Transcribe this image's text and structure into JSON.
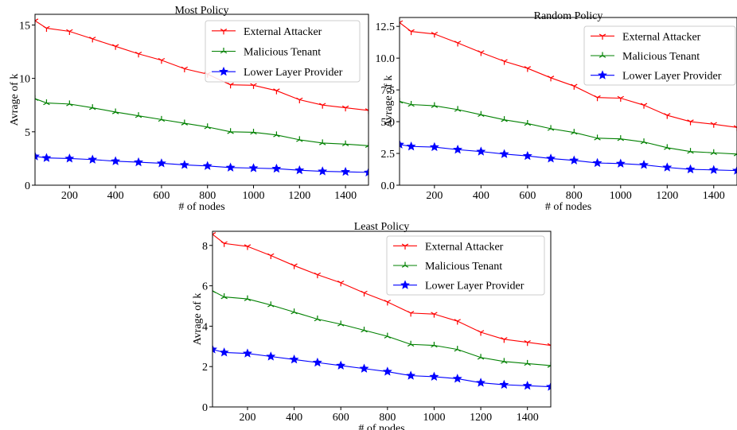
{
  "colors": {
    "external": "#ff0000",
    "malicious": "#008000",
    "lower": "#0000ff"
  },
  "chart_data": [
    {
      "type": "line",
      "title": "Most Policy",
      "xlabel": "# of nodes",
      "ylabel": "Avrage of k",
      "xlim": [
        50,
        1500
      ],
      "ylim": [
        0,
        16
      ],
      "xticks": [
        200,
        400,
        600,
        800,
        1000,
        1200,
        1400
      ],
      "yticks": [
        0,
        5,
        10,
        15
      ],
      "ytick_labels": [
        "0",
        "5",
        "10",
        "15"
      ],
      "legend_position": "top-right",
      "grid": false,
      "x": [
        50,
        100,
        200,
        300,
        400,
        500,
        600,
        700,
        800,
        900,
        1000,
        1100,
        1200,
        1300,
        1400,
        1500
      ],
      "series": [
        {
          "name": "External Attacker",
          "marker": "tri-down",
          "color": "#ff0000",
          "values": [
            15.4,
            14.7,
            14.4,
            13.7,
            13.0,
            12.3,
            11.7,
            10.9,
            10.4,
            9.4,
            9.35,
            8.85,
            8.0,
            7.5,
            7.25,
            7.0
          ]
        },
        {
          "name": "Malicious Tenant",
          "marker": "tri-up",
          "color": "#008000",
          "values": [
            8.1,
            7.7,
            7.6,
            7.25,
            6.85,
            6.5,
            6.15,
            5.8,
            5.45,
            5.0,
            4.95,
            4.7,
            4.25,
            3.95,
            3.85,
            3.7
          ]
        },
        {
          "name": "Lower Layer Provider",
          "marker": "star",
          "color": "#0000ff",
          "values": [
            2.7,
            2.55,
            2.5,
            2.4,
            2.25,
            2.15,
            2.05,
            1.9,
            1.8,
            1.65,
            1.6,
            1.55,
            1.4,
            1.3,
            1.25,
            1.2
          ]
        }
      ]
    },
    {
      "type": "line",
      "title": "Random Policy",
      "xlabel": "# of nodes",
      "ylabel": "Avrage of k",
      "xlim": [
        50,
        1500
      ],
      "ylim": [
        0,
        13.2
      ],
      "xticks": [
        200,
        400,
        600,
        800,
        1000,
        1200,
        1400
      ],
      "yticks": [
        0,
        2.5,
        5,
        7.5,
        10,
        12.5
      ],
      "ytick_labels": [
        "0.0",
        "2.5",
        "5.0",
        "7.5",
        "10.0",
        "12.5"
      ],
      "legend_position": "top-right",
      "grid": false,
      "x": [
        50,
        100,
        200,
        300,
        400,
        500,
        600,
        700,
        800,
        900,
        1000,
        1100,
        1200,
        1300,
        1400,
        1500
      ],
      "series": [
        {
          "name": "External Attacker",
          "marker": "tri-down",
          "color": "#ff0000",
          "values": [
            12.8,
            12.1,
            11.9,
            11.2,
            10.45,
            9.75,
            9.2,
            8.45,
            7.8,
            6.9,
            6.85,
            6.3,
            5.5,
            5.0,
            4.8,
            4.55
          ]
        },
        {
          "name": "Malicious Tenant",
          "marker": "tri-up",
          "color": "#008000",
          "values": [
            6.6,
            6.35,
            6.25,
            5.95,
            5.55,
            5.15,
            4.85,
            4.45,
            4.15,
            3.7,
            3.65,
            3.4,
            2.95,
            2.65,
            2.55,
            2.45
          ]
        },
        {
          "name": "Lower Layer Provider",
          "marker": "star",
          "color": "#0000ff",
          "values": [
            3.2,
            3.05,
            3.0,
            2.8,
            2.65,
            2.45,
            2.3,
            2.1,
            1.95,
            1.75,
            1.7,
            1.6,
            1.4,
            1.25,
            1.2,
            1.15
          ]
        }
      ]
    },
    {
      "type": "line",
      "title": "Least Policy",
      "xlabel": "# of nodes",
      "ylabel": "Avrage of k",
      "xlim": [
        50,
        1500
      ],
      "ylim": [
        0,
        8.7
      ],
      "xticks": [
        200,
        400,
        600,
        800,
        1000,
        1200,
        1400
      ],
      "yticks": [
        0,
        2,
        4,
        6,
        8
      ],
      "ytick_labels": [
        "0",
        "2",
        "4",
        "6",
        "8"
      ],
      "legend_position": "top-right",
      "grid": false,
      "x": [
        50,
        100,
        200,
        300,
        400,
        500,
        600,
        700,
        800,
        900,
        1000,
        1100,
        1200,
        1300,
        1400,
        1500
      ],
      "series": [
        {
          "name": "External Attacker",
          "marker": "tri-down",
          "color": "#ff0000",
          "values": [
            8.55,
            8.1,
            7.95,
            7.5,
            7.0,
            6.55,
            6.15,
            5.65,
            5.2,
            4.65,
            4.6,
            4.25,
            3.7,
            3.35,
            3.2,
            3.05
          ]
        },
        {
          "name": "Malicious Tenant",
          "marker": "tri-up",
          "color": "#008000",
          "values": [
            5.75,
            5.45,
            5.35,
            5.05,
            4.7,
            4.35,
            4.1,
            3.8,
            3.5,
            3.1,
            3.05,
            2.85,
            2.45,
            2.25,
            2.15,
            2.05
          ]
        },
        {
          "name": "Lower Layer Provider",
          "marker": "star",
          "color": "#0000ff",
          "values": [
            2.85,
            2.7,
            2.65,
            2.5,
            2.35,
            2.2,
            2.05,
            1.9,
            1.75,
            1.55,
            1.5,
            1.4,
            1.2,
            1.1,
            1.05,
            1.0
          ]
        }
      ]
    }
  ]
}
